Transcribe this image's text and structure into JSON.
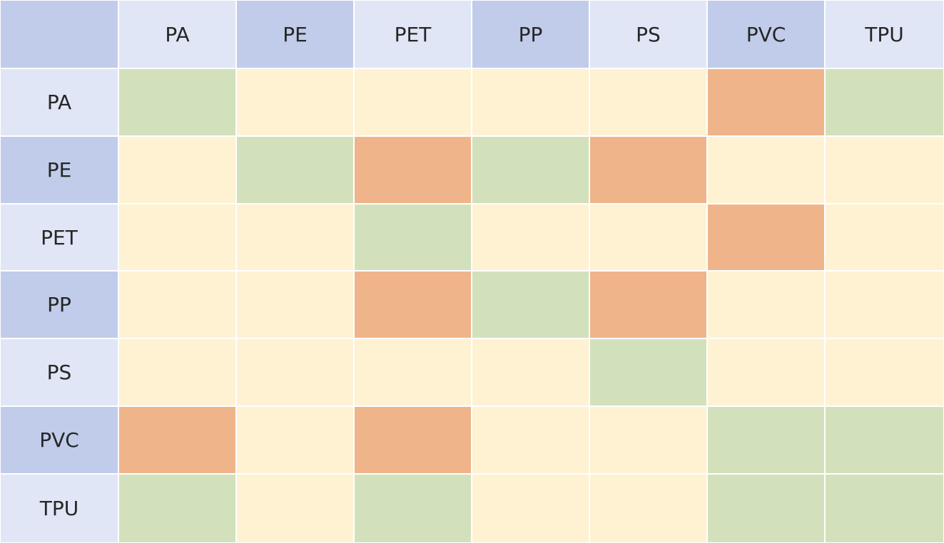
{
  "chart_data": {
    "type": "heatmap",
    "columns": [
      "PA",
      "PE",
      "PET",
      "PP",
      "PS",
      "PVC",
      "TPU"
    ],
    "rows": [
      "PA",
      "PE",
      "PET",
      "PP",
      "PS",
      "PVC",
      "TPU"
    ],
    "values": [
      [
        "green",
        "cream",
        "cream",
        "cream",
        "cream",
        "orange",
        "green"
      ],
      [
        "cream",
        "green",
        "orange",
        "green",
        "orange",
        "cream",
        "cream"
      ],
      [
        "cream",
        "cream",
        "green",
        "cream",
        "cream",
        "orange",
        "cream"
      ],
      [
        "cream",
        "cream",
        "orange",
        "green",
        "orange",
        "cream",
        "cream"
      ],
      [
        "cream",
        "cream",
        "cream",
        "cream",
        "green",
        "cream",
        "cream"
      ],
      [
        "orange",
        "cream",
        "orange",
        "cream",
        "cream",
        "green",
        "green"
      ],
      [
        "green",
        "cream",
        "green",
        "cream",
        "cream",
        "green",
        "green"
      ]
    ],
    "category_colors": {
      "green": "#d2e1bb",
      "cream": "#fef2d3",
      "orange": "#f0b48a"
    },
    "header_colors": {
      "light": "#e0e6f5",
      "dark": "#c0cce9"
    }
  }
}
